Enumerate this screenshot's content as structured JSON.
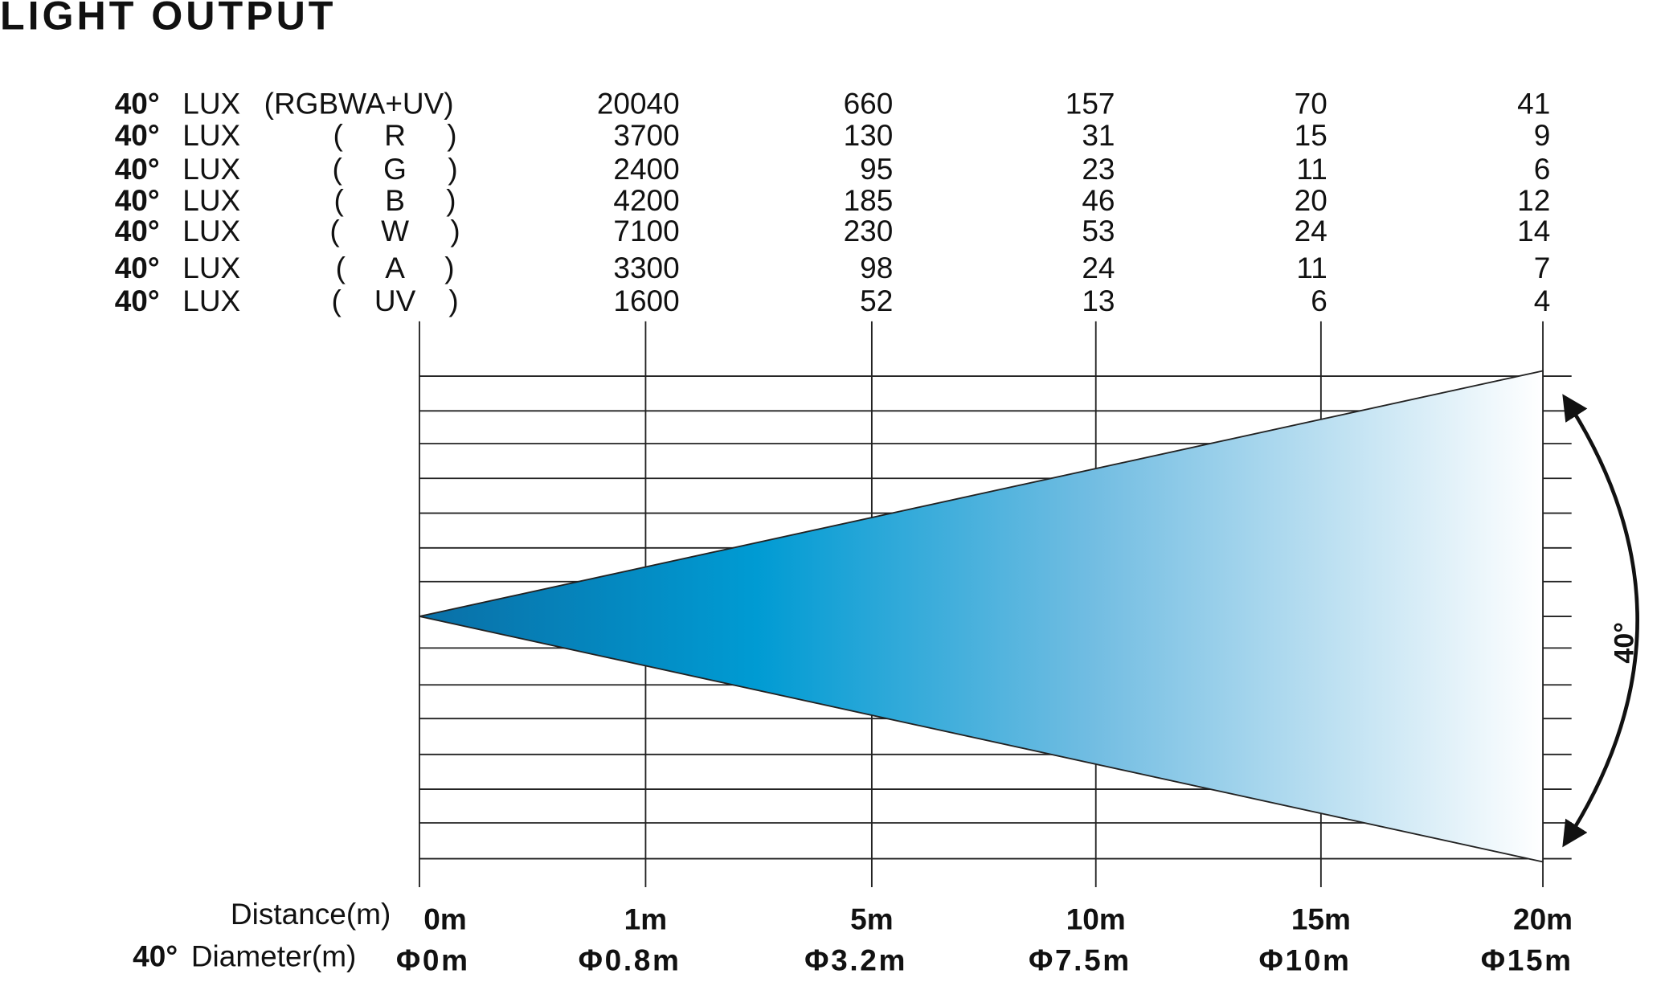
{
  "title": "LIGHT OUTPUT",
  "rows": [
    {
      "angle": "40°",
      "unit": "LUX",
      "channel": "(RGBWA+UV)",
      "values": [
        20040,
        660,
        157,
        70,
        41
      ]
    },
    {
      "angle": "40°",
      "unit": "LUX",
      "channel": "(     R     )",
      "values": [
        3700,
        130,
        31,
        15,
        9
      ]
    },
    {
      "angle": "40°",
      "unit": "LUX",
      "channel": "(     G     )",
      "values": [
        2400,
        95,
        23,
        11,
        6
      ]
    },
    {
      "angle": "40°",
      "unit": "LUX",
      "channel": "(     B     )",
      "values": [
        4200,
        185,
        46,
        20,
        12
      ]
    },
    {
      "angle": "40°",
      "unit": "LUX",
      "channel": "(     W     )",
      "values": [
        7100,
        230,
        53,
        24,
        14
      ]
    },
    {
      "angle": "40°",
      "unit": "LUX",
      "channel": "(     A     )",
      "values": [
        3300,
        98,
        24,
        11,
        7
      ]
    },
    {
      "angle": "40°",
      "unit": "LUX",
      "channel": "(    UV    )",
      "values": [
        1600,
        52,
        13,
        6,
        4
      ]
    }
  ],
  "distance": {
    "label": "Distance(m)",
    "values": [
      "0m",
      "1m",
      "5m",
      "10m",
      "15m",
      "20m"
    ]
  },
  "diameter": {
    "angle": "40°",
    "label": "Diameter(m)",
    "values": [
      "Φ0m",
      "Φ0.8m",
      "Φ3.2m",
      "Φ7.5m",
      "Φ10m",
      "Φ15m"
    ]
  },
  "beam_angle": "40°"
}
